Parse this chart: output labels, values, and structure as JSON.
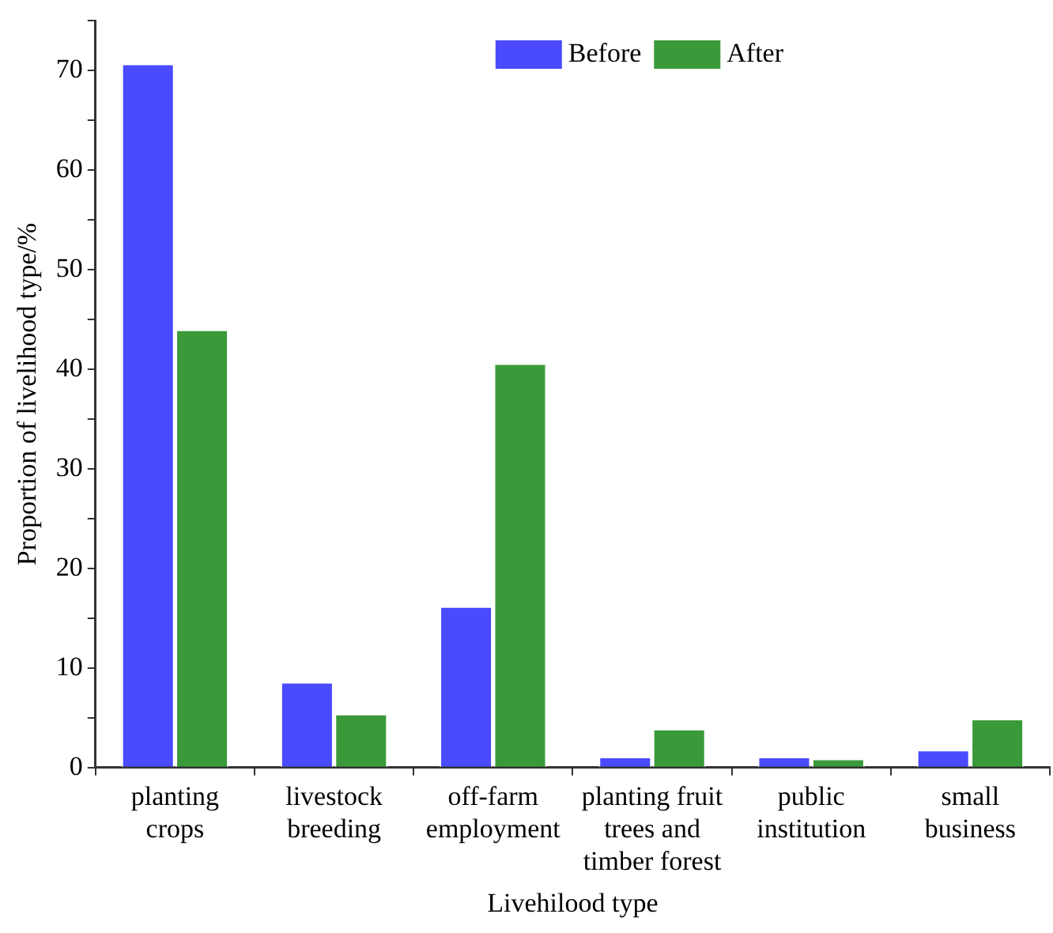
{
  "chart_data": {
    "type": "bar",
    "xlabel": "Livehilood type",
    "ylabel": "Proportion of livelihood type/%",
    "categories": [
      "planting crops",
      "livestock breeding",
      "off-farm employment",
      "planting fruit trees and timber forest",
      "public institution",
      "small business"
    ],
    "series": [
      {
        "name": "Before",
        "color": "#4a4aff",
        "values": [
          70.7,
          8.6,
          16.2,
          1.1,
          1.1,
          1.8
        ]
      },
      {
        "name": "After",
        "color": "#3a9a3a",
        "values": [
          44.0,
          5.4,
          40.6,
          3.9,
          0.9,
          4.9
        ]
      }
    ],
    "ylim": [
      0,
      75
    ],
    "yticks": [
      0,
      {
        "value": 5,
        "label": null
      },
      10,
      {
        "value": 15,
        "label": null
      },
      20,
      {
        "value": 25,
        "label": null
      },
      30,
      {
        "value": 35,
        "label": null
      },
      40,
      {
        "value": 45,
        "label": null
      },
      50,
      {
        "value": 55,
        "label": null
      },
      60,
      {
        "value": 65,
        "label": null
      },
      70,
      {
        "value": 75,
        "label": null
      }
    ],
    "grid": false,
    "legend": "top"
  }
}
